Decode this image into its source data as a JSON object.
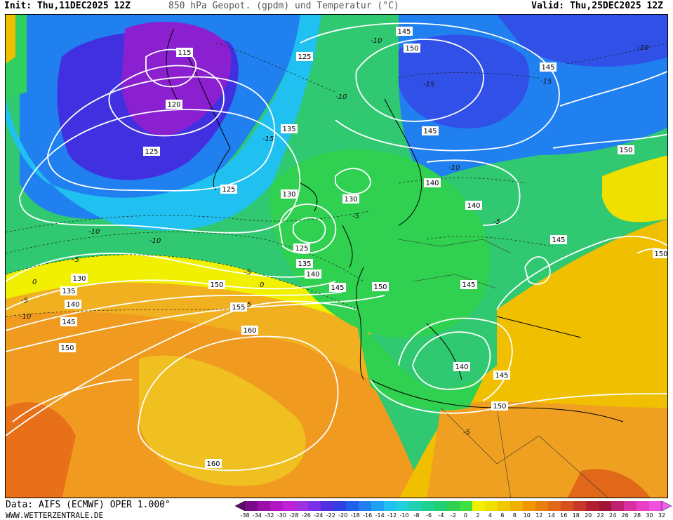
{
  "header": {
    "init": "Init: Thu,11DEC2025 12Z",
    "title": "850 hPa Geopot. (gpdm) und Temperatur (°C)",
    "valid": "Valid: Thu,25DEC2025 12Z"
  },
  "footer": {
    "data": "Data: AIFS (ECMWF) OPER 1.000°",
    "url": "WWW.WETTERZENTRALE.DE"
  },
  "colorbar": {
    "labels": [
      "-38",
      "-34",
      "-32",
      "-30",
      "-28",
      "-26",
      "-24",
      "-22",
      "-20",
      "-18",
      "-16",
      "-14",
      "-12",
      "-10",
      "-8",
      "-6",
      "-4",
      "-2",
      "0",
      "2",
      "4",
      "6",
      "8",
      "10",
      "12",
      "14",
      "16",
      "18",
      "20",
      "22",
      "24",
      "26",
      "28",
      "30",
      "32"
    ],
    "colors": [
      "#5c0a6e",
      "#7a0a8a",
      "#9a10a8",
      "#b018c4",
      "#c020d8",
      "#a030e0",
      "#7a30e8",
      "#5030e0",
      "#3040e0",
      "#2060e8",
      "#2080f0",
      "#20a0f0",
      "#20c0f0",
      "#20d0d8",
      "#20d0b0",
      "#20d090",
      "#20d070",
      "#30d050",
      "#40e040",
      "#f0f000",
      "#f0e000",
      "#f0c800",
      "#f0b000",
      "#f09800",
      "#e88010",
      "#e06818",
      "#d85020",
      "#c83828",
      "#b02030",
      "#a01838",
      "#c02070",
      "#d830a0",
      "#e840c8",
      "#f050e0",
      "#f060f0"
    ]
  },
  "map": {
    "geopotential_labels": [
      {
        "text": "115"
      },
      {
        "text": "120"
      },
      {
        "text": "125"
      },
      {
        "text": "125"
      },
      {
        "text": "135"
      },
      {
        "text": "125"
      },
      {
        "text": "130"
      },
      {
        "text": "130"
      },
      {
        "text": "125"
      },
      {
        "text": "135"
      },
      {
        "text": "140"
      },
      {
        "text": "145"
      },
      {
        "text": "145"
      },
      {
        "text": "150"
      },
      {
        "text": "145"
      },
      {
        "text": "145"
      },
      {
        "text": "140"
      },
      {
        "text": "140"
      },
      {
        "text": "150"
      },
      {
        "text": "145"
      },
      {
        "text": "150"
      },
      {
        "text": "145"
      },
      {
        "text": "150"
      },
      {
        "text": "130"
      },
      {
        "text": "135"
      },
      {
        "text": "140"
      },
      {
        "text": "145"
      },
      {
        "text": "150"
      },
      {
        "text": "150"
      },
      {
        "text": "155"
      },
      {
        "text": "160"
      },
      {
        "text": "160"
      },
      {
        "text": "140"
      },
      {
        "text": "145"
      },
      {
        "text": "150"
      }
    ],
    "temperature_labels": [
      {
        "text": "-10"
      },
      {
        "text": "-10"
      },
      {
        "text": "-15"
      },
      {
        "text": "-15"
      },
      {
        "text": "-10"
      },
      {
        "text": "-10"
      },
      {
        "text": "-15"
      },
      {
        "text": "-10"
      },
      {
        "text": "-5"
      },
      {
        "text": "-5"
      },
      {
        "text": "-5"
      },
      {
        "text": "0"
      },
      {
        "text": "-10"
      },
      {
        "text": "-5"
      },
      {
        "text": "0"
      },
      {
        "text": "-5"
      },
      {
        "text": "-10"
      },
      {
        "text": "-5"
      },
      {
        "text": "5"
      }
    ]
  }
}
